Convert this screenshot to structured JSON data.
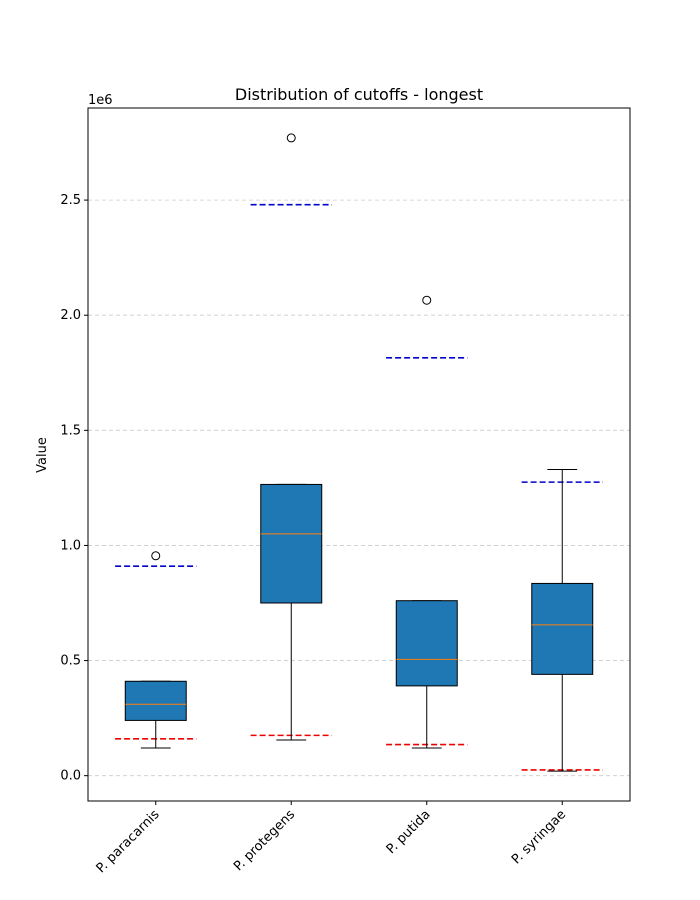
{
  "chart_data": {
    "type": "box",
    "title": "Distribution of cutoffs - longest",
    "xlabel": "",
    "ylabel": "Value",
    "y_offset_label": "1e6",
    "y_scale": 1000000,
    "ylim": [
      -110000,
      2900000
    ],
    "yticks": [
      0,
      500000,
      1000000,
      1500000,
      2000000,
      2500000
    ],
    "ytick_labels": [
      "0.0",
      "0.5",
      "1.0",
      "1.5",
      "2.0",
      "2.5"
    ],
    "grid": "y-dashed",
    "categories": [
      "P. paracarnis",
      "P. protegens",
      "P. putida",
      "P. syringae"
    ],
    "boxes": [
      {
        "whisker_low": 120000,
        "q1": 240000,
        "median": 310000,
        "q3": 410000,
        "whisker_high": 410000,
        "outliers": [
          955000
        ],
        "upper_ref": 910000,
        "lower_ref": 160000
      },
      {
        "whisker_low": 155000,
        "q1": 750000,
        "median": 1050000,
        "q3": 1265000,
        "whisker_high": 1265000,
        "outliers": [
          2770000
        ],
        "upper_ref": 2480000,
        "lower_ref": 175000
      },
      {
        "whisker_low": 120000,
        "q1": 390000,
        "median": 505000,
        "q3": 760000,
        "whisker_high": 760000,
        "outliers": [
          2065000
        ],
        "upper_ref": 1815000,
        "lower_ref": 135000
      },
      {
        "whisker_low": 20000,
        "q1": 440000,
        "median": 655000,
        "q3": 835000,
        "whisker_high": 1330000,
        "outliers": [],
        "upper_ref": 1275000,
        "lower_ref": 25000
      }
    ],
    "colors": {
      "box_fill": "#1f77b4",
      "median": "#ff7f0e",
      "upper_ref": "#0000cc",
      "lower_ref": "#ee0000",
      "grid": "#cccccc"
    }
  }
}
